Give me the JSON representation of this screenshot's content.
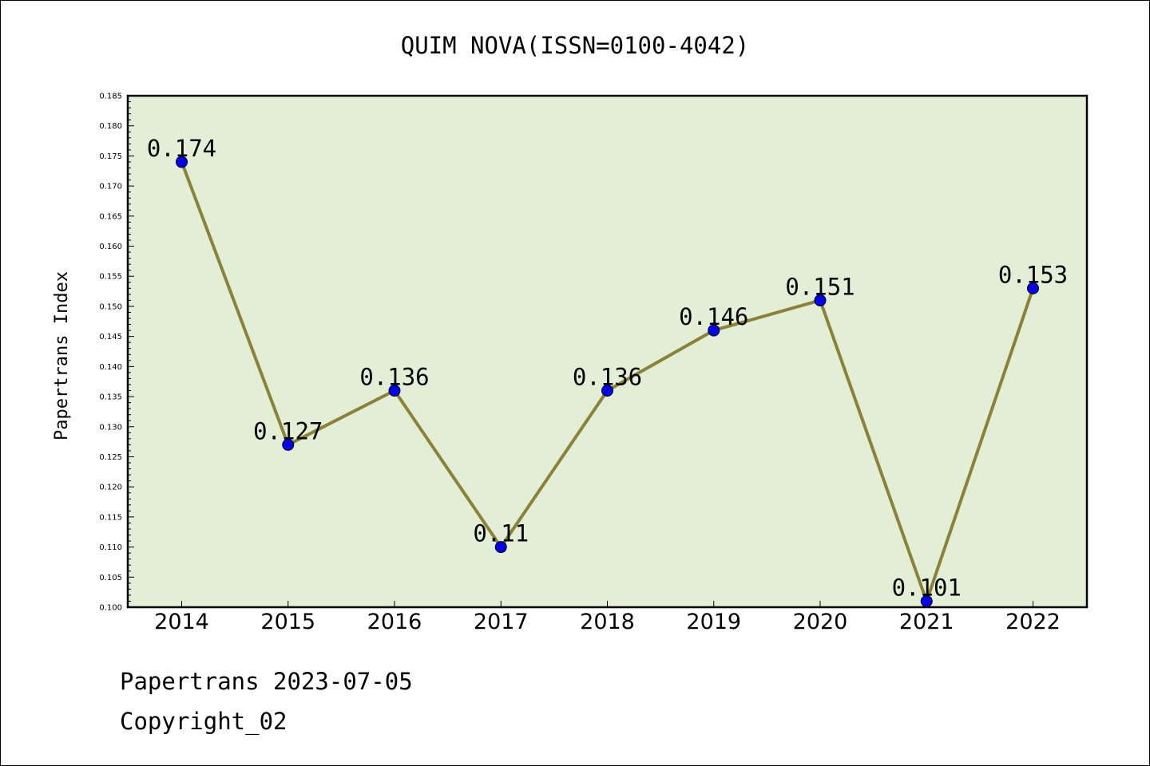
{
  "chart_data": {
    "type": "line",
    "title": "QUIM NOVA(ISSN=0100-4042)",
    "xlabel": "",
    "ylabel": "Papertrans Index",
    "categories": [
      "2014",
      "2015",
      "2016",
      "2017",
      "2018",
      "2019",
      "2020",
      "2021",
      "2022"
    ],
    "values": [
      0.174,
      0.127,
      0.136,
      0.11,
      0.136,
      0.146,
      0.151,
      0.101,
      0.153
    ],
    "data_labels": [
      "0.174",
      "0.127",
      "0.136",
      "0.11",
      "0.136",
      "0.146",
      "0.151",
      "0.101",
      "0.153"
    ],
    "ylim": [
      0.1,
      0.185
    ],
    "yticks": [
      "0.100",
      "0.105",
      "0.110",
      "0.115",
      "0.120",
      "0.125",
      "0.130",
      "0.135",
      "0.140",
      "0.145",
      "0.150",
      "0.155",
      "0.160",
      "0.165",
      "0.170",
      "0.175",
      "0.180",
      "0.185"
    ],
    "grid": false,
    "colors": {
      "plot_background": "#e2efd6",
      "line": "#8b8235",
      "marker": "#0000ee"
    }
  },
  "footer": {
    "line1": "Papertrans 2023-07-05",
    "line2": "Copyright_02"
  }
}
